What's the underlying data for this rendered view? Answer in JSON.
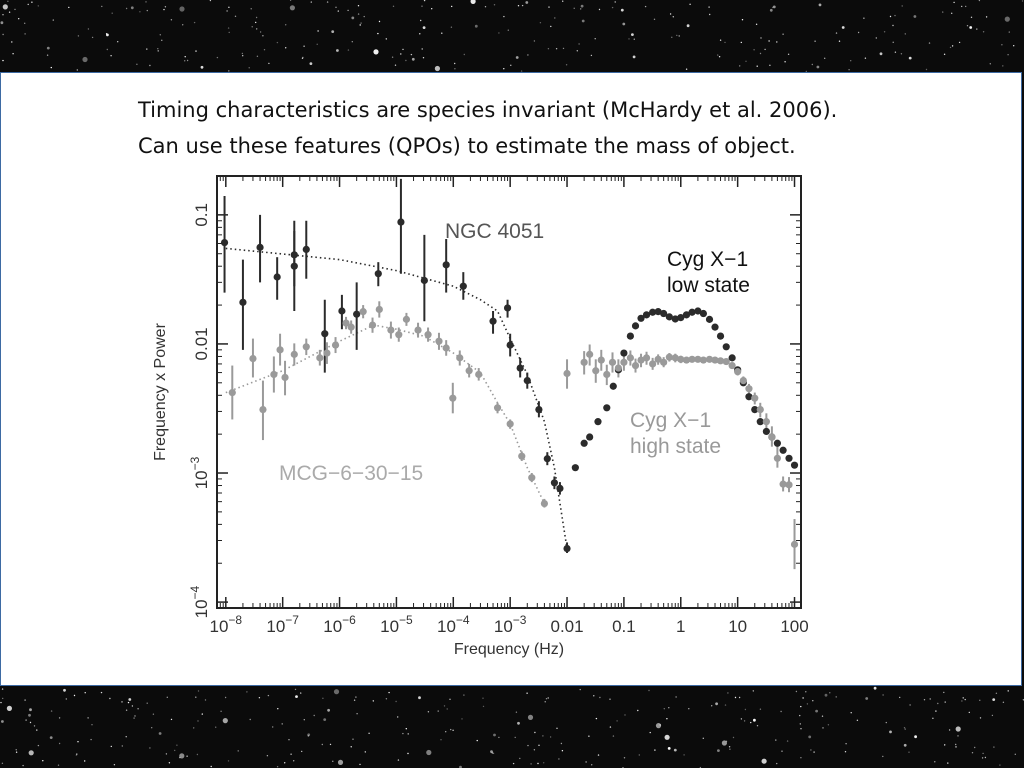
{
  "caption": {
    "line1": "Timing characteristics are species invariant (McHardy et al. 2006).",
    "line2": "Can use these features (QPOs) to estimate the mass of object."
  },
  "colors": {
    "dark_series": "#2b2b2b",
    "light_series": "#9a9a9a",
    "panel_border": "#3d6aa3",
    "background": "#0b0b0b"
  },
  "chart_data": {
    "type": "scatter",
    "xlabel": "Frequency (Hz)",
    "ylabel": "Frequency x Power",
    "x_scale": "log",
    "y_scale": "log",
    "xlim": [
      7e-09,
      130
    ],
    "ylim": [
      9e-05,
      0.2
    ],
    "x_ticks": [
      {
        "value": 1e-08,
        "base": "10",
        "exp": "−8"
      },
      {
        "value": 1e-07,
        "base": "10",
        "exp": "−7"
      },
      {
        "value": 1e-06,
        "base": "10",
        "exp": "−6"
      },
      {
        "value": 1e-05,
        "base": "10",
        "exp": "−5"
      },
      {
        "value": 0.0001,
        "base": "10",
        "exp": "−4"
      },
      {
        "value": 0.001,
        "base": "10",
        "exp": "−3"
      },
      {
        "value": 0.01,
        "base": "0.01",
        "exp": ""
      },
      {
        "value": 0.1,
        "base": "0.1",
        "exp": ""
      },
      {
        "value": 1,
        "base": "1",
        "exp": ""
      },
      {
        "value": 10,
        "base": "10",
        "exp": ""
      },
      {
        "value": 100,
        "base": "100",
        "exp": ""
      }
    ],
    "y_ticks": [
      {
        "value": 0.1,
        "base": "0.1",
        "exp": ""
      },
      {
        "value": 0.01,
        "base": "0.01",
        "exp": ""
      },
      {
        "value": 0.001,
        "base": "10",
        "exp": "−3"
      },
      {
        "value": 0.0001,
        "base": "10",
        "exp": "−4"
      }
    ],
    "annotations": [
      {
        "text": "NGC 4051",
        "color": "dark"
      },
      {
        "text": "Cyg X−1",
        "color": "dark"
      },
      {
        "text": "low state",
        "color": "dark"
      },
      {
        "text": "Cyg X−1",
        "color": "light"
      },
      {
        "text": "high state",
        "color": "light"
      },
      {
        "text": "MCG−6−30−15",
        "color": "light"
      }
    ],
    "series": [
      {
        "name": "NGC 4051",
        "color": "dark",
        "points": [
          [
            9.5e-09,
            0.061,
            0.025,
            0.14
          ],
          [
            2e-08,
            0.021,
            0.009,
            0.045
          ],
          [
            4e-08,
            0.056,
            0.03,
            0.1
          ],
          [
            8e-08,
            0.033,
            0.022,
            0.047
          ],
          [
            1.6e-07,
            0.049,
            0.028,
            0.09
          ],
          [
            1.6e-07,
            0.04,
            0.018,
            0.075
          ],
          [
            2.6e-07,
            0.054,
            0.032,
            0.09
          ],
          [
            5.5e-07,
            0.012,
            0.006,
            0.022
          ],
          [
            1.1e-06,
            0.018,
            0.013,
            0.024
          ],
          [
            2e-06,
            0.017,
            0.009,
            0.03
          ],
          [
            4.8e-06,
            0.035,
            0.028,
            0.043
          ],
          [
            1.2e-05,
            0.088,
            0.035,
            0.19
          ],
          [
            3.1e-05,
            0.031,
            0.015,
            0.07
          ],
          [
            7.5e-05,
            0.041,
            0.025,
            0.065
          ],
          [
            0.00015,
            0.028,
            0.022,
            0.036
          ],
          [
            0.0005,
            0.015,
            0.012,
            0.018
          ],
          [
            0.0009,
            0.019,
            0.016,
            0.022
          ],
          [
            0.001,
            0.0098,
            0.008,
            0.012
          ],
          [
            0.0015,
            0.0065,
            0.0055,
            0.0078
          ],
          [
            0.002,
            0.0052,
            0.0045,
            0.006
          ],
          [
            0.0032,
            0.0031,
            0.0027,
            0.0036
          ],
          [
            0.0045,
            0.00129,
            0.00115,
            0.00145
          ],
          [
            0.006,
            0.00084,
            0.00075,
            0.00094
          ],
          [
            0.0075,
            0.00076,
            0.00068,
            0.00085
          ],
          [
            0.01,
            0.00026,
            0.00024,
            0.00029
          ]
        ]
      },
      {
        "name": "MCG−6−30−15",
        "color": "light",
        "points": [
          [
            1.3e-08,
            0.0042,
            0.0026,
            0.0068
          ],
          [
            3e-08,
            0.0077,
            0.0055,
            0.011
          ],
          [
            4.5e-08,
            0.0031,
            0.0018,
            0.0052
          ],
          [
            7e-08,
            0.0058,
            0.0042,
            0.008
          ],
          [
            9e-08,
            0.009,
            0.0068,
            0.012
          ],
          [
            1.1e-07,
            0.0055,
            0.004,
            0.0074
          ],
          [
            1.6e-07,
            0.0083,
            0.0068,
            0.0101
          ],
          [
            2.6e-07,
            0.0095,
            0.0082,
            0.011
          ],
          [
            4.5e-07,
            0.0078,
            0.0068,
            0.009
          ],
          [
            6e-07,
            0.0085,
            0.007,
            0.0103
          ],
          [
            8.5e-07,
            0.0098,
            0.0085,
            0.0113
          ],
          [
            1.3e-06,
            0.0145,
            0.013,
            0.0162
          ],
          [
            1.6e-06,
            0.0135,
            0.012,
            0.0152
          ],
          [
            2.6e-06,
            0.0178,
            0.0158,
            0.02
          ],
          [
            3.8e-06,
            0.014,
            0.0122,
            0.016
          ],
          [
            5e-06,
            0.0185,
            0.016,
            0.0214
          ],
          [
            8e-06,
            0.0128,
            0.011,
            0.0149
          ],
          [
            1.1e-05,
            0.0118,
            0.0104,
            0.0134
          ],
          [
            1.5e-05,
            0.0155,
            0.0138,
            0.0174
          ],
          [
            2.4e-05,
            0.0128,
            0.0112,
            0.0146
          ],
          [
            3.6e-05,
            0.0118,
            0.0104,
            0.0134
          ],
          [
            5.6e-05,
            0.0105,
            0.009,
            0.0122
          ],
          [
            7.5e-05,
            0.0093,
            0.0081,
            0.0107
          ],
          [
            9.8e-05,
            0.0038,
            0.0029,
            0.005
          ],
          [
            0.00013,
            0.0078,
            0.0068,
            0.0089
          ],
          [
            0.00019,
            0.0062,
            0.0055,
            0.007
          ],
          [
            0.00028,
            0.0058,
            0.0052,
            0.0065
          ],
          [
            0.0006,
            0.0032,
            0.0029,
            0.0035
          ],
          [
            0.001,
            0.0024,
            0.0022,
            0.0026
          ],
          [
            0.0016,
            0.00135,
            0.00124,
            0.00147
          ],
          [
            0.0024,
            0.00092,
            0.00085,
            0.001
          ],
          [
            0.004,
            0.00058,
            0.00054,
            0.00063
          ]
        ]
      },
      {
        "name": "Cyg X−1 low state",
        "color": "dark",
        "points": [
          [
            0.014,
            0.0011
          ],
          [
            0.02,
            0.0017
          ],
          [
            0.025,
            0.0019
          ],
          [
            0.035,
            0.0025
          ],
          [
            0.05,
            0.0032
          ],
          [
            0.065,
            0.0047
          ],
          [
            0.08,
            0.0063
          ],
          [
            0.1,
            0.0085
          ],
          [
            0.13,
            0.0115
          ],
          [
            0.16,
            0.0138
          ],
          [
            0.2,
            0.0158
          ],
          [
            0.25,
            0.0168
          ],
          [
            0.32,
            0.0176
          ],
          [
            0.4,
            0.0178
          ],
          [
            0.5,
            0.0172
          ],
          [
            0.63,
            0.0162
          ],
          [
            0.8,
            0.0156
          ],
          [
            1.0,
            0.016
          ],
          [
            1.26,
            0.0168
          ],
          [
            1.58,
            0.0176
          ],
          [
            2.0,
            0.018
          ],
          [
            2.5,
            0.0172
          ],
          [
            3.2,
            0.0155
          ],
          [
            4.0,
            0.0135
          ],
          [
            5.0,
            0.0115
          ],
          [
            6.3,
            0.0095
          ],
          [
            8.0,
            0.0078
          ],
          [
            10,
            0.0063
          ],
          [
            12.6,
            0.005
          ],
          [
            15.8,
            0.0039
          ],
          [
            20,
            0.0031
          ],
          [
            25,
            0.0025
          ],
          [
            32,
            0.0021
          ],
          [
            40,
            0.0019
          ],
          [
            50,
            0.0017
          ],
          [
            63,
            0.0015
          ],
          [
            80,
            0.0013
          ],
          [
            100,
            0.00115
          ]
        ]
      },
      {
        "name": "Cyg X−1 high state",
        "color": "light",
        "points": [
          [
            0.01,
            0.0059,
            0.0045,
            0.0076
          ],
          [
            0.02,
            0.0072,
            0.0058,
            0.0088
          ],
          [
            0.025,
            0.0083,
            0.0068,
            0.0099
          ],
          [
            0.032,
            0.0062,
            0.005,
            0.0076
          ],
          [
            0.04,
            0.0075,
            0.0062,
            0.009
          ],
          [
            0.05,
            0.0058,
            0.0048,
            0.0069
          ],
          [
            0.063,
            0.0072,
            0.006,
            0.0086
          ],
          [
            0.08,
            0.0065,
            0.0055,
            0.0076
          ],
          [
            0.1,
            0.0072,
            0.0062,
            0.0083
          ],
          [
            0.13,
            0.0078,
            0.0068,
            0.0089
          ],
          [
            0.16,
            0.0068,
            0.006,
            0.0077
          ],
          [
            0.2,
            0.0075,
            0.0066,
            0.0084
          ],
          [
            0.25,
            0.0078,
            0.0069,
            0.0087
          ],
          [
            0.32,
            0.007,
            0.0063,
            0.0078
          ],
          [
            0.4,
            0.0076,
            0.0069,
            0.0083
          ],
          [
            0.5,
            0.0072,
            0.0066,
            0.0079
          ],
          [
            0.63,
            0.0079,
            0.0073,
            0.0085
          ],
          [
            0.8,
            0.0078,
            0.0072,
            0.0084
          ],
          [
            1.0,
            0.0076,
            0.0071,
            0.0081
          ],
          [
            1.26,
            0.0075,
            0.0071,
            0.0079
          ],
          [
            1.58,
            0.0076,
            0.0072,
            0.008
          ],
          [
            2.0,
            0.0076,
            0.0072,
            0.008
          ],
          [
            2.5,
            0.0075,
            0.0071,
            0.0079
          ],
          [
            3.2,
            0.0076,
            0.0072,
            0.008
          ],
          [
            4.0,
            0.0075,
            0.0071,
            0.0079
          ],
          [
            5.0,
            0.0074,
            0.007,
            0.0078
          ],
          [
            6.3,
            0.0073,
            0.0069,
            0.0077
          ],
          [
            8.0,
            0.0068,
            0.0064,
            0.0072
          ],
          [
            10,
            0.0061,
            0.0057,
            0.0065
          ],
          [
            12.6,
            0.0052,
            0.0048,
            0.0056
          ],
          [
            15.8,
            0.0045,
            0.0041,
            0.0049
          ],
          [
            20,
            0.0038,
            0.0034,
            0.0042
          ],
          [
            25,
            0.0031,
            0.0027,
            0.0035
          ],
          [
            32,
            0.0025,
            0.0021,
            0.0029
          ],
          [
            40,
            0.0019,
            0.0016,
            0.0023
          ],
          [
            50,
            0.0013,
            0.0011,
            0.0016
          ],
          [
            63,
            0.00082,
            0.00072,
            0.00094
          ],
          [
            80,
            0.00081,
            0.00071,
            0.00093
          ],
          [
            100,
            0.00028,
            0.00018,
            0.00044
          ]
        ]
      }
    ],
    "fit_lines": [
      {
        "for": "NGC 4051",
        "color": "dark",
        "points": [
          [
            1e-08,
            0.055
          ],
          [
            1e-06,
            0.045
          ],
          [
            1e-05,
            0.037
          ],
          [
            0.0001,
            0.028
          ],
          [
            0.0003,
            0.022
          ],
          [
            0.0006,
            0.018
          ],
          [
            0.001,
            0.011
          ],
          [
            0.002,
            0.0058
          ],
          [
            0.004,
            0.0025
          ],
          [
            0.006,
            0.0011
          ],
          [
            0.01,
            0.00026
          ]
        ]
      },
      {
        "for": "MCG−6−30−15",
        "color": "light",
        "points": [
          [
            1e-08,
            0.0042
          ],
          [
            1e-07,
            0.0062
          ],
          [
            1e-06,
            0.0105
          ],
          [
            4e-06,
            0.014
          ],
          [
            1e-05,
            0.013
          ],
          [
            3e-05,
            0.0115
          ],
          [
            0.0001,
            0.0085
          ],
          [
            0.0003,
            0.006
          ],
          [
            0.0006,
            0.0035
          ],
          [
            0.001,
            0.0024
          ],
          [
            0.002,
            0.0011
          ],
          [
            0.004,
            0.00058
          ]
        ]
      }
    ]
  }
}
